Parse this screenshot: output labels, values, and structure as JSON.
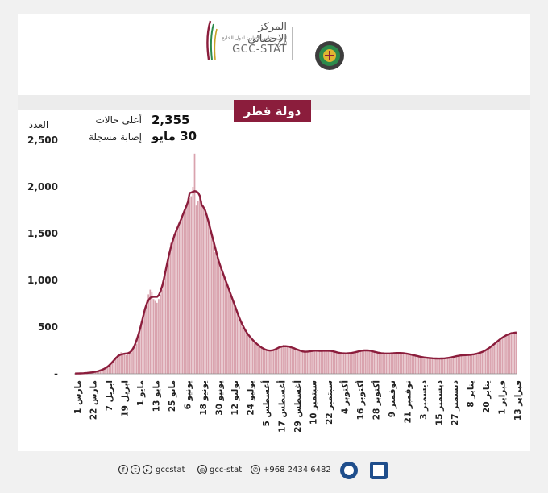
{
  "header": {
    "org_name_ar": "المركز الإحصائي",
    "org_sub_ar": "لدول مجلس التعاون لدول الخليج العربية",
    "org_name_en": "GCC-STAT"
  },
  "country_label": "دولة قطر",
  "peak": {
    "value": "2,355",
    "date": "30 مايو",
    "label_line1": "أعلى حالات",
    "label_line2": "إصابة مسجلة"
  },
  "footer": {
    "handle_social": "gccstat",
    "handle_insta": "gcc-stat",
    "phone": "+968 2434 6482"
  },
  "colors": {
    "bar": "#d9a3ae",
    "line": "#8b1d3c",
    "title_bg": "#8b1d3c"
  },
  "chart_data": {
    "type": "bar",
    "ylabel": "العدد",
    "ylim": [
      0,
      2500
    ],
    "yticks": [
      0,
      500,
      1000,
      1500,
      2000,
      2500
    ],
    "ytick_labels": [
      "-",
      "500",
      "1,000",
      "1,500",
      "2,000",
      "2,500"
    ],
    "grid": false,
    "xtick_labels": [
      "1 مارس",
      "22 مارس",
      "7 ابريل",
      "19 ابريل",
      "1 مايو",
      "13 مايو",
      "25 مايو",
      "6 يونيو",
      "18 يونيو",
      "30 يونيو",
      "12 يوليو",
      "24 يوليو",
      "5 أغسطس",
      "17 أغسطس",
      "29 أغسطس",
      "10 سبتمبر",
      "22 سبتمبر",
      "4 أكتوبر",
      "16 أكتوبر",
      "28 أكتوبر",
      "9 نوفمبر",
      "21 نوفمبر",
      "3 ديسمبر",
      "15 ديسمبر",
      "27 ديسمبر",
      "8 يناير",
      "20 يناير",
      "1 فبراير",
      "13 فبراير"
    ],
    "series": [
      {
        "values": [
          2,
          3,
          3,
          4,
          5,
          6,
          7,
          8,
          10,
          12,
          15,
          18,
          20,
          25,
          30,
          35,
          40,
          50,
          60,
          70,
          85,
          100,
          120,
          150,
          180,
          200,
          210,
          230,
          220,
          210,
          200,
          210,
          220,
          230,
          250,
          280,
          320,
          400,
          480,
          560,
          620,
          700,
          780,
          850,
          900,
          880,
          800,
          780,
          760,
          800,
          850,
          900,
          1000,
          1100,
          1200,
          1300,
          1400,
          1450,
          1500,
          1520,
          1550,
          1600,
          1650,
          1700,
          1750,
          1800,
          1850,
          1880,
          1900,
          2000,
          2355,
          1800,
          1850,
          1900,
          1850,
          1800,
          1750,
          1700,
          1650,
          1600,
          1500,
          1400,
          1300,
          1250,
          1200,
          1150,
          1100,
          1050,
          1000,
          950,
          900,
          850,
          800,
          750,
          700,
          650,
          600,
          550,
          500,
          470,
          440,
          420,
          400,
          380,
          360,
          340,
          320,
          300,
          290,
          280,
          270,
          260,
          250,
          240,
          240,
          240,
          250,
          260,
          270,
          280,
          290,
          300,
          310,
          300,
          295,
          290,
          285,
          280,
          275,
          270,
          260,
          250,
          240,
          235,
          230,
          230,
          235,
          240,
          245,
          250,
          250,
          250,
          250,
          245,
          240,
          240,
          245,
          250,
          255,
          250,
          245,
          240,
          235,
          230,
          225,
          220,
          218,
          215,
          215,
          218,
          220,
          222,
          225,
          228,
          230,
          235,
          240,
          245,
          250,
          255,
          258,
          255,
          250,
          245,
          240,
          235,
          230,
          225,
          222,
          220,
          218,
          216,
          215,
          215,
          216,
          218,
          220,
          222,
          225,
          225,
          224,
          222,
          220,
          218,
          215,
          212,
          208,
          205,
          200,
          195,
          190,
          185,
          180,
          178,
          175,
          172,
          170,
          168,
          166,
          165,
          164,
          163,
          162,
          162,
          163,
          164,
          165,
          166,
          168,
          170,
          175,
          180,
          185,
          190,
          195,
          198,
          200,
          200,
          200,
          200,
          200,
          202,
          205,
          208,
          212,
          215,
          220,
          225,
          230,
          240,
          250,
          260,
          275,
          290,
          305,
          320,
          335,
          350,
          365,
          380,
          395,
          405,
          415,
          425,
          430,
          435,
          440,
          445,
          450
        ]
      }
    ]
  }
}
